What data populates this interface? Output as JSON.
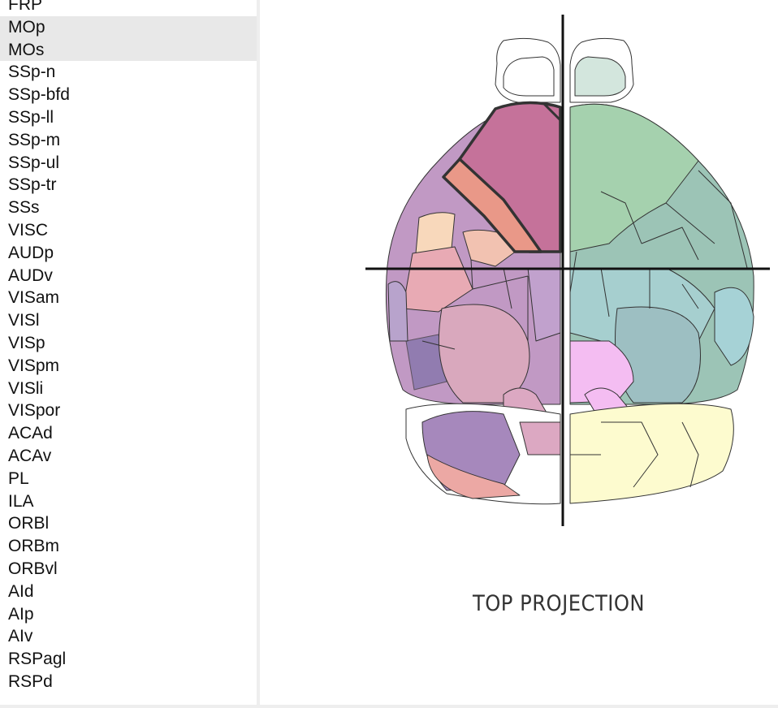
{
  "regions": {
    "items": [
      {
        "label": "FRP"
      },
      {
        "label": "MOp"
      },
      {
        "label": "MOs"
      },
      {
        "label": "SSp-n"
      },
      {
        "label": "SSp-bfd"
      },
      {
        "label": "SSp-ll"
      },
      {
        "label": "SSp-m"
      },
      {
        "label": "SSp-ul"
      },
      {
        "label": "SSp-tr"
      },
      {
        "label": "SSs"
      },
      {
        "label": "VISC"
      },
      {
        "label": "AUDp"
      },
      {
        "label": "AUDv"
      },
      {
        "label": "VISam"
      },
      {
        "label": "VISl"
      },
      {
        "label": "VISp"
      },
      {
        "label": "VISpm"
      },
      {
        "label": "VISli"
      },
      {
        "label": "VISpor"
      },
      {
        "label": "ACAd"
      },
      {
        "label": "ACAv"
      },
      {
        "label": "PL"
      },
      {
        "label": "ILA"
      },
      {
        "label": "ORBl"
      },
      {
        "label": "ORBm"
      },
      {
        "label": "ORBvl"
      },
      {
        "label": "AId"
      },
      {
        "label": "AIp"
      },
      {
        "label": "AIv"
      },
      {
        "label": "RSPagl"
      },
      {
        "label": "RSPd"
      }
    ],
    "selected": [
      "MOp",
      "MOs"
    ]
  },
  "viewer": {
    "title": "TOP PROJECTION"
  },
  "colors": {
    "selected_row": "#e8e8e8",
    "mos_highlight": "#c5729a",
    "mop_highlight": "#e99888",
    "left_hemisphere_base": "#c199c4",
    "right_hemisphere_base": "#a3cfb0",
    "cerebellum": "#fdfbcf",
    "crosshair": "#111111"
  }
}
